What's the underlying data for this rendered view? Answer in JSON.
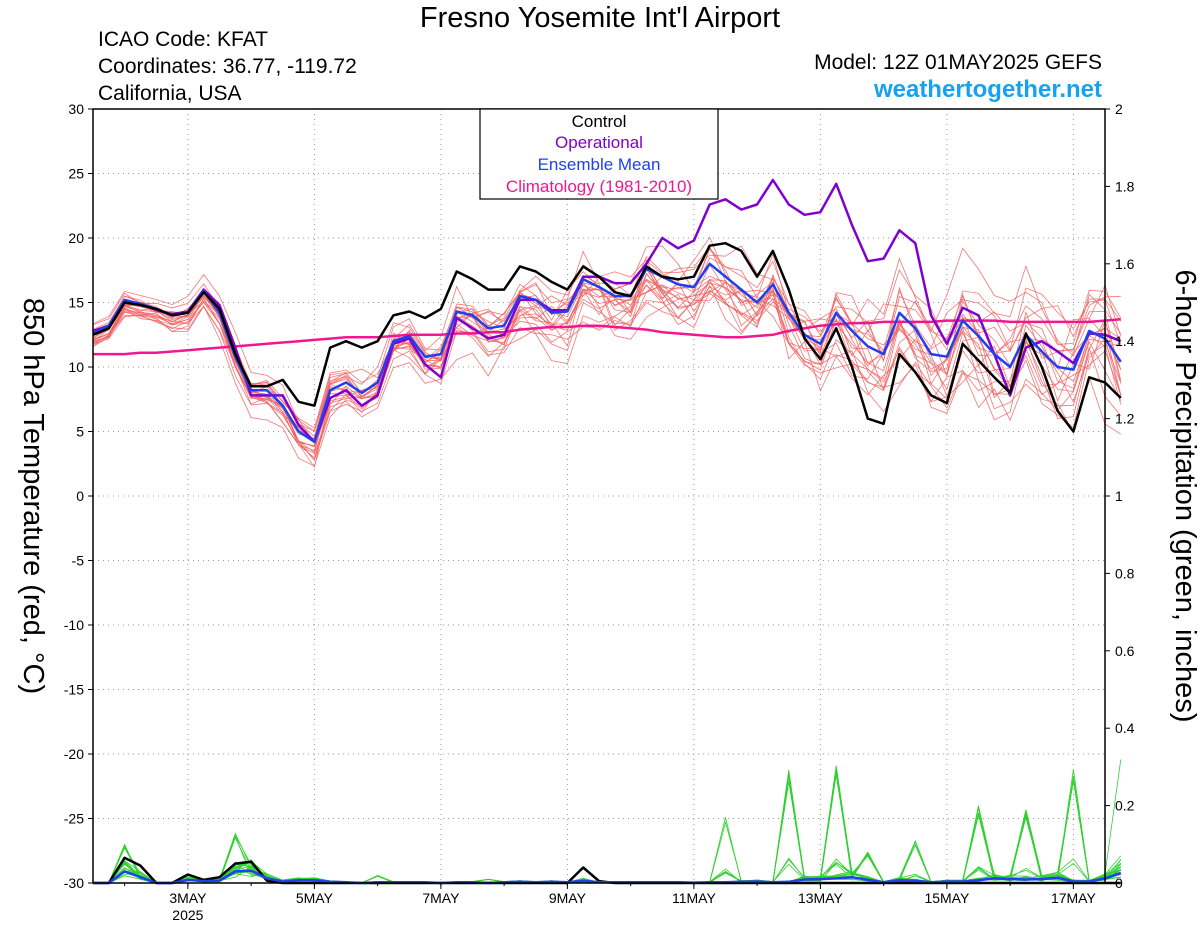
{
  "header": {
    "title": "Fresno Yosemite Int'l Airport",
    "icao": "ICAO Code: KFAT",
    "coords": "Coordinates: 36.77, -119.72",
    "region": "California, USA",
    "model": "Model: 12Z 01MAY2025 GEFS",
    "site": "weathertogether.net"
  },
  "colors": {
    "member": "#f06060",
    "control": "#000000",
    "operational": "#8000d0",
    "ensemble_mean": "#2040f0",
    "climatology": "#f01890",
    "precip_member": "#30d030",
    "site": "#1aa0f0"
  },
  "chart_data": {
    "type": "line",
    "xlabel_ticks": [
      "3MAY",
      "5MAY",
      "7MAY",
      "9MAY",
      "11MAY",
      "13MAY",
      "15MAY",
      "17MAY"
    ],
    "xlabel_year": "2025",
    "x_tick_days": [
      3,
      5,
      7,
      9,
      11,
      13,
      15,
      17
    ],
    "x_range_days": [
      1.5,
      17.5
    ],
    "x_step_days": 0.25,
    "ylabel_left": "850 hPa Temperature (red, °C)",
    "ylabel_right": "6-hour Precipitation (green, inches)",
    "ylim_left": [
      -30,
      30
    ],
    "yticks_left": [
      30,
      25,
      20,
      15,
      10,
      5,
      0,
      -5,
      -10,
      -15,
      -20,
      -25,
      -30
    ],
    "ylim_right": [
      0,
      2
    ],
    "yticks_right": [
      "2",
      "1.8",
      "1.6",
      "1.4",
      "1.2",
      "1",
      "0.8",
      "0.6",
      "0.4",
      "0.2",
      "0"
    ],
    "grid": true,
    "legend": {
      "placement": "top-center",
      "entries": [
        "Control",
        "Operational",
        "Ensemble Mean",
        "Climatology (1981-2010)"
      ]
    },
    "series": [
      {
        "name": "Control",
        "axis": "left",
        "values": [
          12.5,
          13,
          15,
          14.8,
          14.5,
          14,
          14.2,
          15.8,
          14.5,
          11,
          8.5,
          8.5,
          9,
          7.3,
          7,
          11.5,
          12,
          11.5,
          12,
          14,
          14.3,
          13.8,
          14.5,
          17.4,
          16.8,
          16,
          16,
          17.8,
          17.4,
          16.6,
          16,
          17.8,
          17,
          15.8,
          15.5,
          17.8,
          17,
          16.8,
          17,
          19.4,
          19.6,
          19,
          17,
          19,
          16,
          12.2,
          10.6,
          13,
          10,
          6,
          5.6,
          11,
          9.6,
          7.8,
          7.2,
          11.8,
          10.5,
          9.2,
          8,
          12.6,
          10,
          6.6,
          5,
          9.2,
          8.8,
          7.6
        ]
      },
      {
        "name": "Operational",
        "axis": "left",
        "values": [
          12.8,
          13.2,
          15,
          14.9,
          14.4,
          14.1,
          14.3,
          16,
          14.8,
          11.5,
          7.8,
          7.8,
          7.8,
          5.5,
          4.2,
          7.6,
          8.2,
          7,
          7.8,
          11.8,
          12.2,
          10.2,
          9.2,
          13.8,
          13,
          12.2,
          12.5,
          15.2,
          15.2,
          14.4,
          14.4,
          17,
          17,
          16.5,
          16.5,
          18,
          20,
          19.2,
          19.8,
          22.6,
          23,
          22.2,
          22.6,
          24.5,
          22.6,
          21.8,
          22,
          24.2,
          21,
          18.2,
          18.4,
          20.6,
          19.6,
          14,
          11.8,
          14.6,
          14,
          11,
          7.8,
          11.5,
          12,
          11.2,
          10.3,
          12.6,
          12.5,
          12
        ]
      },
      {
        "name": "Ensemble Mean",
        "axis": "left",
        "values": [
          12.6,
          13.2,
          15.2,
          14.9,
          14.5,
          14,
          14.2,
          15.9,
          14.2,
          10.8,
          8.2,
          8.2,
          7,
          5,
          4.2,
          8.2,
          8.8,
          8,
          8.8,
          12,
          12.4,
          10.8,
          11,
          14.3,
          14,
          13,
          13.2,
          15.5,
          15.2,
          14.2,
          14.3,
          16.8,
          16.2,
          15.5,
          15.5,
          17.6,
          17,
          16.4,
          16.2,
          18,
          17,
          16,
          15,
          16.4,
          14.2,
          12.5,
          11.8,
          14.2,
          12.8,
          11.6,
          11,
          14.2,
          13,
          11,
          10.8,
          13.6,
          12.4,
          11,
          10,
          12.5,
          11.2,
          10,
          9.8,
          12.8,
          12.2,
          10.4
        ]
      },
      {
        "name": "Climatology (1981-2010)",
        "axis": "left",
        "values": [
          11,
          11,
          11,
          11.1,
          11.1,
          11.2,
          11.3,
          11.4,
          11.5,
          11.6,
          11.7,
          11.8,
          11.9,
          12,
          12.1,
          12.2,
          12.3,
          12.3,
          12.3,
          12.4,
          12.5,
          12.5,
          12.5,
          12.6,
          12.6,
          12.7,
          12.7,
          12.9,
          13,
          13.1,
          13.1,
          13.2,
          13.2,
          13.1,
          13,
          12.9,
          12.7,
          12.6,
          12.5,
          12.4,
          12.3,
          12.3,
          12.4,
          12.5,
          12.8,
          13,
          13.2,
          13.3,
          13.4,
          13.4,
          13.5,
          13.5,
          13.5,
          13.5,
          13.6,
          13.6,
          13.6,
          13.6,
          13.5,
          13.5,
          13.5,
          13.5,
          13.5,
          13.5,
          13.6,
          13.7
        ]
      },
      {
        "name": "Control precip",
        "axis": "right",
        "values": [
          0,
          0,
          0.065,
          0.045,
          0,
          0,
          0.022,
          0.008,
          0.015,
          0.05,
          0.055,
          0.006,
          0,
          0,
          0,
          0,
          0,
          0,
          0,
          0,
          0,
          0,
          0,
          0,
          0,
          0,
          0,
          0,
          0,
          0,
          0,
          0.04,
          0.005,
          0,
          0,
          0,
          0,
          0,
          0,
          0,
          0,
          0,
          0,
          0,
          0,
          0,
          0,
          0,
          0,
          0,
          0,
          0,
          0,
          0,
          0,
          0,
          0,
          0,
          0,
          0,
          0,
          0,
          0,
          0,
          0,
          0
        ]
      },
      {
        "name": "Ensemble Mean precip",
        "axis": "right",
        "values": [
          0,
          0,
          0.03,
          0.015,
          0,
          0,
          0.008,
          0.005,
          0.006,
          0.03,
          0.032,
          0.012,
          0.004,
          0.007,
          0.007,
          0.003,
          0.002,
          0,
          0.002,
          0.002,
          0.002,
          0.002,
          0,
          0.002,
          0.002,
          0,
          0.002,
          0.003,
          0.002,
          0.003,
          0.002,
          0.006,
          0.002,
          0.002,
          0.002,
          0.002,
          0.002,
          0.002,
          0.001,
          0.002,
          0.002,
          0.003,
          0.004,
          0.002,
          0.003,
          0.009,
          0.01,
          0.012,
          0.015,
          0.008,
          0.002,
          0.007,
          0.006,
          0.002,
          0.004,
          0.004,
          0.007,
          0.012,
          0.01,
          0.009,
          0.01,
          0.014,
          0.004,
          0.004,
          0.012,
          0.026
        ]
      }
    ]
  }
}
